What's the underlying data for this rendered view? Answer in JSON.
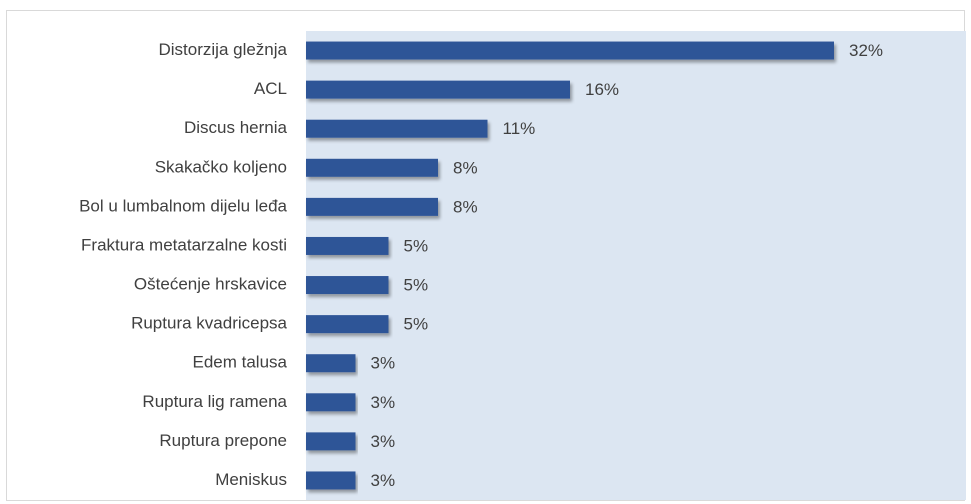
{
  "chart_data": {
    "type": "bar",
    "orientation": "horizontal",
    "categories": [
      "Distorzija gležnja",
      "ACL",
      "Discus hernia",
      "Skakačko koljeno",
      "Bol u lumbalnom dijelu leđa",
      "Fraktura metatarzalne kosti",
      "Oštećenje hrskavice",
      "Ruptura kvadricepsa",
      "Edem talusa",
      "Ruptura lig ramena",
      "Ruptura prepone",
      "Meniskus"
    ],
    "values": [
      32,
      16,
      11,
      8,
      8,
      5,
      5,
      5,
      3,
      3,
      3,
      3
    ],
    "value_labels": [
      "32%",
      "16%",
      "11%",
      "8%",
      "8%",
      "5%",
      "5%",
      "5%",
      "3%",
      "3%",
      "3%",
      "3%"
    ],
    "color": "#2f5597",
    "plot_background": "#dce6f2",
    "xlim": [
      0,
      40
    ],
    "grid": false
  }
}
